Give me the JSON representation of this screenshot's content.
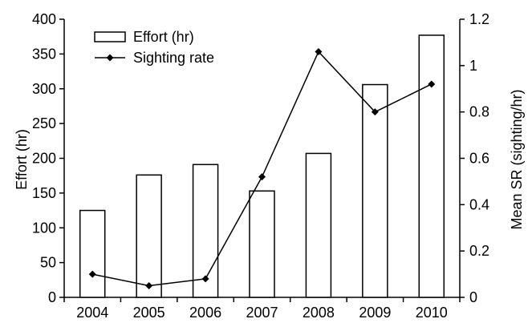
{
  "chart_data": {
    "type": "bar",
    "categories": [
      "2004",
      "2005",
      "2006",
      "2007",
      "2008",
      "2009",
      "2010"
    ],
    "series": [
      {
        "name": "Effort (hr)",
        "type": "bar",
        "axis": "left",
        "values": [
          125,
          176,
          191,
          153,
          207,
          306,
          377
        ]
      },
      {
        "name": "Sighting rate",
        "type": "line",
        "axis": "right",
        "marker": "diamond",
        "values": [
          0.1,
          0.05,
          0.08,
          0.52,
          1.06,
          0.8,
          0.92
        ]
      }
    ],
    "title": "",
    "xlabel": "",
    "ylabel": "Effort (hr)",
    "y2label": "Mean SR (sighting/hr)",
    "ylim": [
      0,
      400
    ],
    "y2lim": [
      0,
      1.2
    ],
    "yticks": [
      "0",
      "50",
      "100",
      "150",
      "200",
      "250",
      "300",
      "350",
      "400"
    ],
    "y2ticks": [
      "0",
      "0.2",
      "0.4",
      "0.6",
      "0.8",
      "1",
      "1.2"
    ],
    "grid": false,
    "legend_position": "top-left",
    "colors": {
      "bar_fill": "#ffffff",
      "bar_stroke": "#000000",
      "line": "#000000"
    }
  }
}
